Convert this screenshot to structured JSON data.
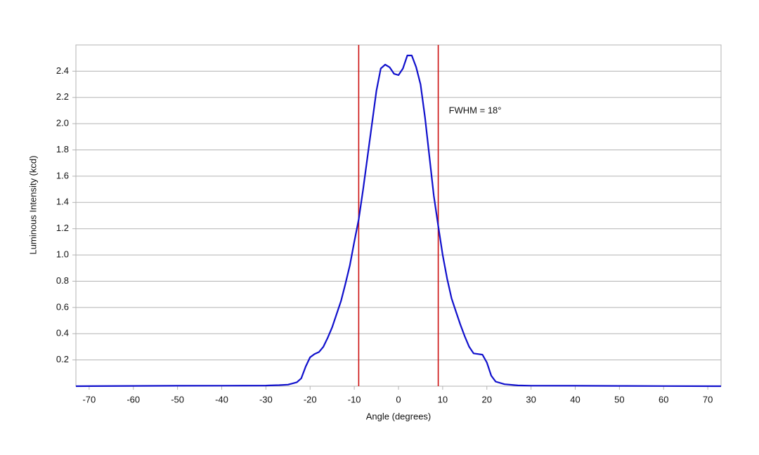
{
  "chart_data": {
    "type": "line",
    "xlabel": "Angle (degrees)",
    "ylabel": "Luminous Intensity (kcd)",
    "annotation": "FWHM = 18°",
    "xlim": [
      -73,
      73
    ],
    "xticks": [
      -70,
      -60,
      -50,
      -40,
      -30,
      -20,
      -10,
      0,
      10,
      20,
      30,
      40,
      50,
      60,
      70
    ],
    "ylim": [
      0,
      2.6
    ],
    "yticks": [
      0.2,
      0.4,
      0.6,
      0.8,
      {
        "value": 1,
        "label": "1.0"
      },
      1.2,
      1.4,
      1.6,
      1.8,
      {
        "value": 2,
        "label": "2.0"
      },
      2.2,
      2.4
    ],
    "grid": true,
    "vlines": {
      "color": "#cc1111",
      "x": [
        -9,
        9
      ]
    },
    "series": [
      {
        "color": "#1010cc",
        "x": [
          -73,
          -60,
          -50,
          -40,
          -30,
          -27,
          -25,
          -23,
          -22,
          -21,
          -20,
          -19,
          -18,
          -17,
          -16,
          -15,
          -14,
          -13,
          -12,
          -11,
          -10,
          -9,
          -8,
          -7,
          -6,
          -5,
          -4,
          -3,
          -2,
          -1,
          0,
          1,
          2,
          3,
          4,
          5,
          6,
          7,
          8,
          9,
          10,
          11,
          12,
          13,
          14,
          15,
          16,
          17,
          18,
          19,
          20,
          21,
          22,
          24,
          27,
          30,
          40,
          50,
          60,
          73
        ],
        "values": [
          0,
          0.002,
          0.003,
          0.004,
          0.005,
          0.008,
          0.012,
          0.03,
          0.06,
          0.15,
          0.22,
          0.245,
          0.26,
          0.3,
          0.37,
          0.45,
          0.55,
          0.65,
          0.78,
          0.92,
          1.1,
          1.27,
          1.5,
          1.75,
          2.0,
          2.25,
          2.42,
          2.45,
          2.43,
          2.38,
          2.37,
          2.42,
          2.52,
          2.52,
          2.43,
          2.3,
          2.05,
          1.75,
          1.45,
          1.22,
          1.0,
          0.82,
          0.67,
          0.57,
          0.47,
          0.38,
          0.3,
          0.25,
          0.245,
          0.24,
          0.18,
          0.08,
          0.035,
          0.015,
          0.006,
          0.004,
          0.003,
          0.002,
          0.001,
          0
        ]
      }
    ]
  }
}
